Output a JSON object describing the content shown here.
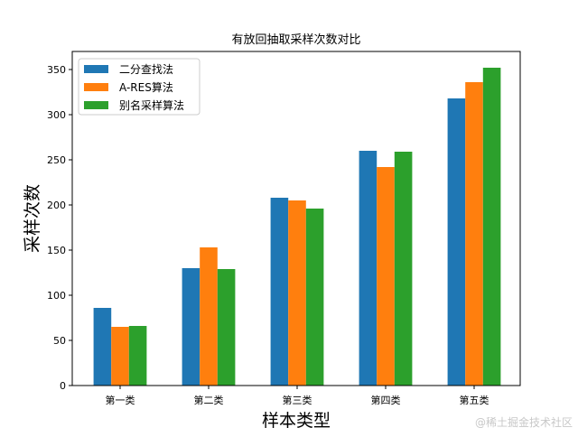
{
  "chart_data": {
    "type": "bar",
    "title": "有放回抽取采样次数对比",
    "xlabel": "样本类型",
    "ylabel": "采样次数",
    "categories": [
      "第一类",
      "第二类",
      "第三类",
      "第四类",
      "第五类"
    ],
    "series": [
      {
        "name": "二分查找法",
        "color": "#1f77b4",
        "values": [
          86,
          130,
          208,
          260,
          318
        ]
      },
      {
        "name": "A-RES算法",
        "color": "#ff7f0e",
        "values": [
          65,
          153,
          205,
          242,
          336
        ]
      },
      {
        "name": "别名采样算法",
        "color": "#2ca02c",
        "values": [
          66,
          129,
          196,
          259,
          352
        ]
      }
    ],
    "ylim": [
      0,
      370
    ],
    "yticks": [
      0,
      50,
      100,
      150,
      200,
      250,
      300,
      350
    ],
    "grid": false,
    "legend": "top-left"
  },
  "watermark": "@稀土掘金技术社区"
}
